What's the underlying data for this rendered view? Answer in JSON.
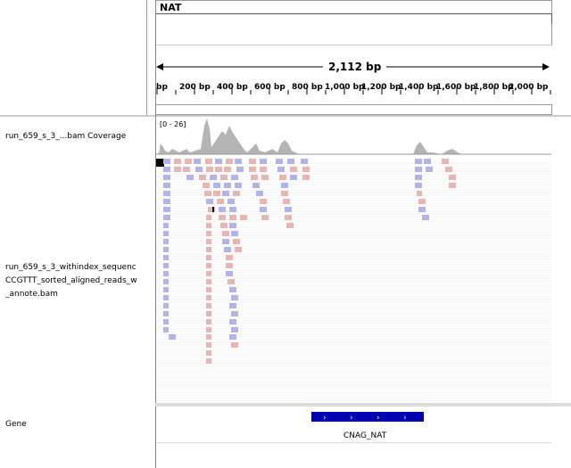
{
  "chromosome": {
    "name": "NAT"
  },
  "ruler": {
    "span_label": "2,112 bp",
    "tick_labels": [
      "bp",
      "200 bp",
      "400 bp",
      "600 bp",
      "800 bp",
      "1,000 bp",
      "1,200 bp",
      "1,400 bp",
      "1,600 bp",
      "1,800 bp",
      "2,000 bp"
    ]
  },
  "tracks": {
    "coverage": {
      "name": "run_659_s_3_...bam Coverage",
      "data_range": "[0 - 26]"
    },
    "alignments": {
      "name_line1": "run_659_s_3_withindex_sequenc",
      "name_line2": "CCGTTT_sorted_aligned_reads_w",
      "name_line3": "_annote.bam"
    },
    "gene": {
      "name": "Gene",
      "feature": "CNAG_NAT",
      "strand_glyph": "›"
    }
  },
  "colors": {
    "coverage_fill": "#b4b4b4",
    "read_forward": "#e8b6b0",
    "read_reverse": "#b3b3ec",
    "gene_block": "#0000b2"
  }
}
